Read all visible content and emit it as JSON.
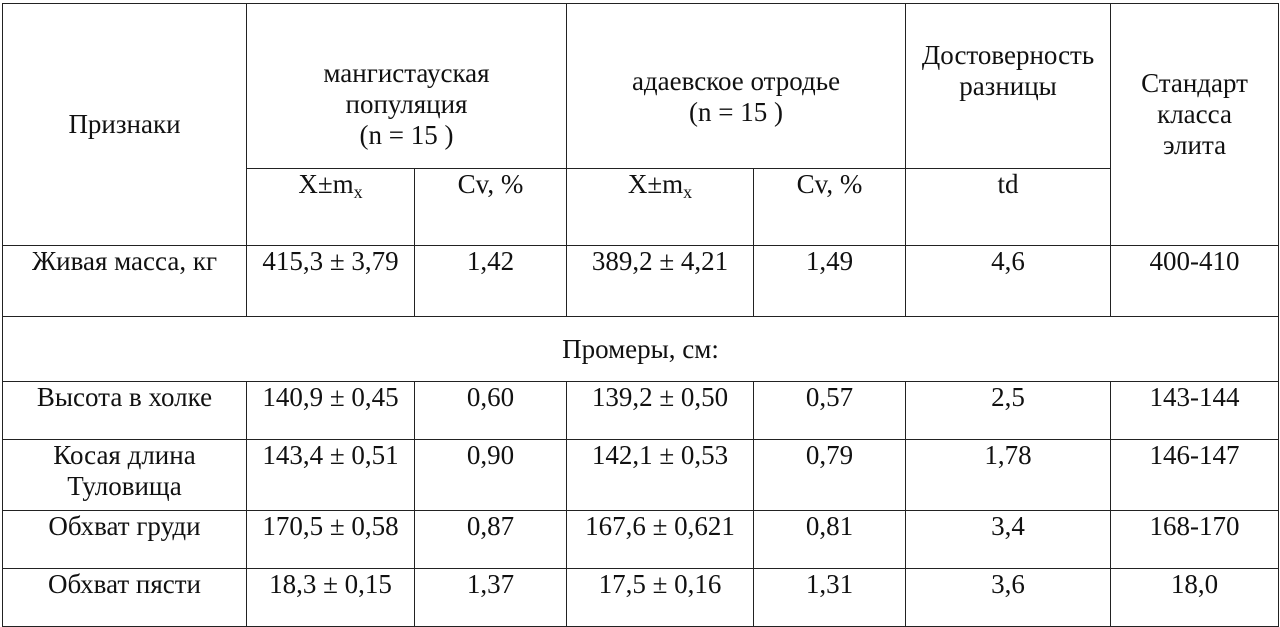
{
  "header": {
    "feature": "Признаки",
    "group1": "мангистауская популяция (n = 15 )",
    "group1_line1": "мангистауская",
    "group1_line2": "популяция",
    "group1_line3": "(n = 15 )",
    "group2_line1": "адаевское отродье",
    "group2_line2": "(n = 15 )",
    "significance_line1": "Достоверность",
    "significance_line2": "разницы",
    "standard_line1": "Стандарт",
    "standard_line2": "класса",
    "standard_line3": "элита",
    "mean_label": "X±m",
    "mean_sub": "x",
    "cv_label": "Cv, %",
    "td_label": "td"
  },
  "rows": [
    {
      "feature": "Живая масса, кг",
      "m1": "415,3 ± 3,79",
      "cv1": "1,42",
      "m2": "389,2 ± 4,21",
      "cv2": "1,49",
      "td": "4,6",
      "std": "400-410"
    }
  ],
  "section_title": "Промеры, см:",
  "measurements": [
    {
      "feature": "Высота в холке",
      "m1": "140,9 ± 0,45",
      "cv1": "0,60",
      "m2": "139,2 ± 0,50",
      "cv2": "0,57",
      "td": "2,5",
      "std": "143-144"
    },
    {
      "feature_line1": "Косая длина",
      "feature_line2": "Туловища",
      "m1": "143,4 ± 0,51",
      "cv1": "0,90",
      "m2": "142,1 ± 0,53",
      "cv2": "0,79",
      "td": "1,78",
      "std": "146-147"
    },
    {
      "feature": "Обхват груди",
      "m1": "170,5 ± 0,58",
      "cv1": "0,87",
      "m2": "167,6 ± 0,621",
      "cv2": "0,81",
      "td": "3,4",
      "std": "168-170"
    },
    {
      "feature": "Обхват пясти",
      "m1": "18,3 ± 0,15",
      "cv1": "1,37",
      "m2": "17,5 ± 0,16",
      "cv2": "1,31",
      "td": "3,6",
      "std": "18,0"
    }
  ]
}
